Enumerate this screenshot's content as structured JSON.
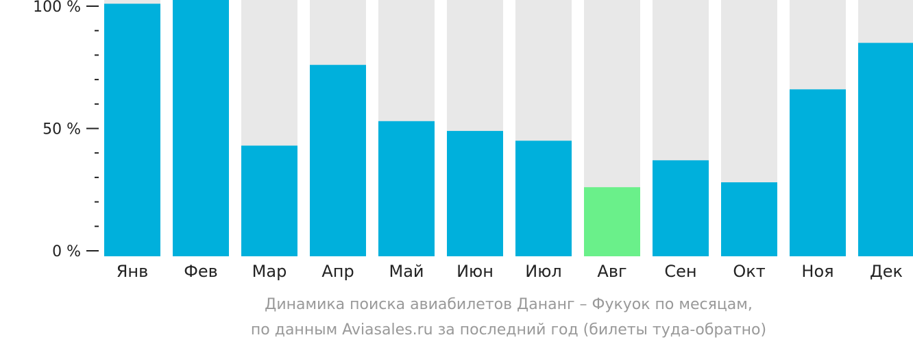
{
  "chart_data": {
    "type": "bar",
    "title": "",
    "xlabel": "",
    "ylabel": "",
    "ylim": [
      0,
      100
    ],
    "y_tick_labels": [
      "0 %",
      "50 %",
      "100 %"
    ],
    "y_ticks": [
      0,
      50,
      100
    ],
    "minor_ticks_per_major": 5,
    "grid": false,
    "categories": [
      "Янв",
      "Фев",
      "Мар",
      "Апр",
      "Май",
      "Июн",
      "Июл",
      "Авг",
      "Сен",
      "Окт",
      "Ноя",
      "Дек"
    ],
    "values": [
      101,
      103,
      43,
      76,
      53,
      49,
      45,
      26,
      37,
      28,
      66,
      85
    ],
    "highlight_index": 7,
    "colors": {
      "bar": "#00b0dc",
      "highlight": "#6af08a",
      "track": "#e8e8e8",
      "axis": "#222222"
    }
  },
  "caption": {
    "line1": "Динамика поиска авиабилетов Дананг – Фукуок по месяцам,",
    "line2": "по данным Aviasales.ru за последний год (билеты туда-обратно)"
  }
}
